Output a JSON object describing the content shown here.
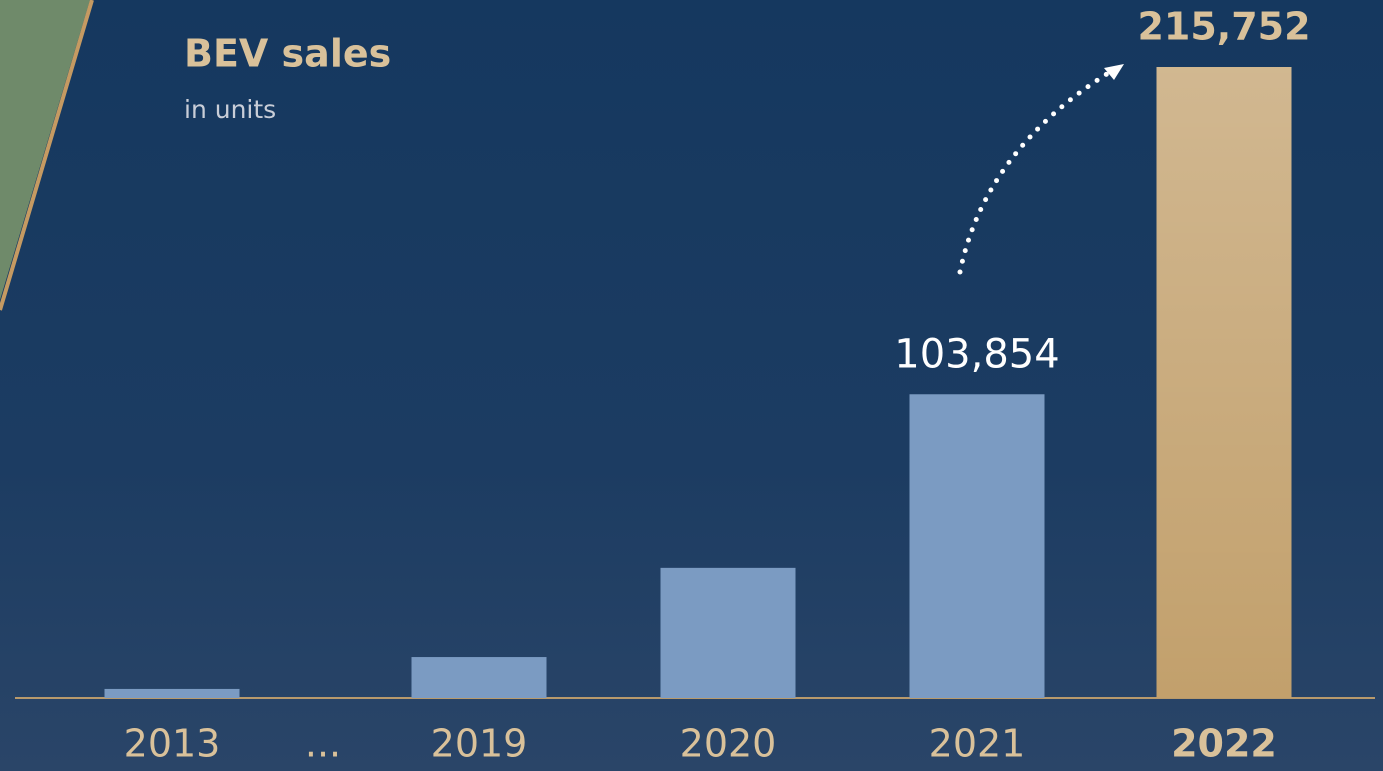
{
  "chart_data": {
    "type": "bar",
    "title": "BEV sales",
    "subtitle": "in units",
    "categories": [
      "2013",
      "...",
      "2019",
      "2020",
      "2021",
      "2022"
    ],
    "values": [
      3100,
      null,
      14000,
      44500,
      103854,
      215752
    ],
    "value_labels": [
      null,
      null,
      null,
      null,
      "103,854",
      "215,752"
    ],
    "colors": [
      "#7b9bc2",
      null,
      "#7b9bc2",
      "#7b9bc2",
      "#7b9bc2",
      "#c2a06c"
    ]
  }
}
